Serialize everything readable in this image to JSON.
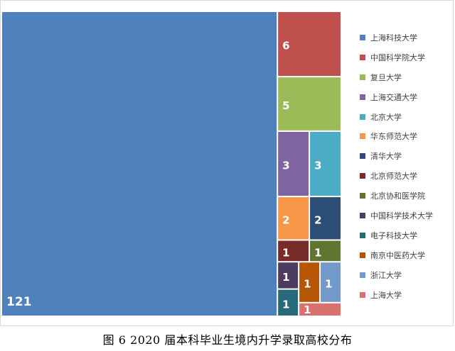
{
  "chart_data": {
    "type": "treemap",
    "items": [
      {
        "name": "上海科技大学",
        "value": 121,
        "color": "#4f81bd"
      },
      {
        "name": "中国科学院大学",
        "value": 6,
        "color": "#c0504d"
      },
      {
        "name": "复旦大学",
        "value": 5,
        "color": "#9bbb59"
      },
      {
        "name": "上海交通大学",
        "value": 3,
        "color": "#8064a2"
      },
      {
        "name": "北京大学",
        "value": 3,
        "color": "#4bacc6"
      },
      {
        "name": "华东师范大学",
        "value": 2,
        "color": "#f79646"
      },
      {
        "name": "清华大学",
        "value": 2,
        "color": "#2c4d75"
      },
      {
        "name": "北京师范大学",
        "value": 1,
        "color": "#772c2a"
      },
      {
        "name": "北京协和医学院",
        "value": 1,
        "color": "#5f7530"
      },
      {
        "name": "中国科学技术大学",
        "value": 1,
        "color": "#4d3b62"
      },
      {
        "name": "电子科技大学",
        "value": 1,
        "color": "#276a7c"
      },
      {
        "name": "南京中医药大学",
        "value": 1,
        "color": "#b65708"
      },
      {
        "name": "浙江大学",
        "value": 1,
        "color": "#729aca"
      },
      {
        "name": "上海大学",
        "value": 1,
        "color": "#d9726f"
      }
    ],
    "legend_position": "right"
  },
  "caption": "图 6  2020 届本科毕业生境内升学录取高校分布"
}
